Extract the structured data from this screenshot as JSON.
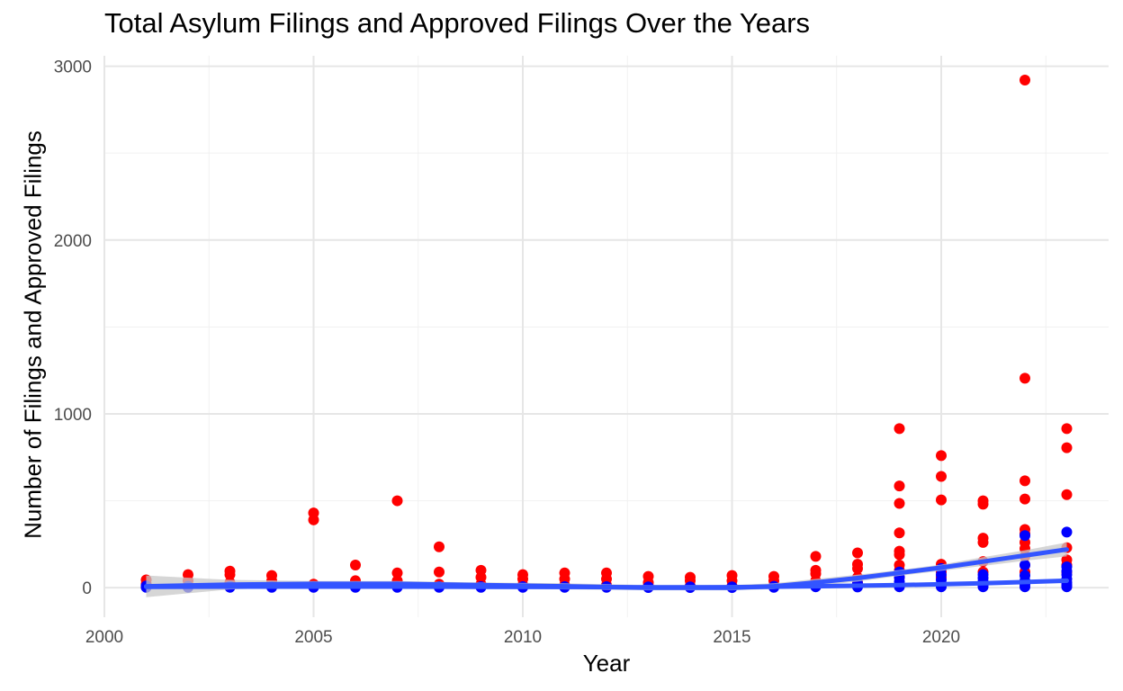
{
  "chart_data": {
    "type": "scatter",
    "title": "Total Asylum Filings and Approved Filings Over the Years",
    "xlabel": "Year",
    "ylabel": "Number of Filings and Approved Filings",
    "xlim": [
      2000,
      2024
    ],
    "ylim": [
      -170,
      3060
    ],
    "x_ticks": [
      2000,
      2005,
      2010,
      2015,
      2020
    ],
    "y_ticks": [
      0,
      1000,
      2000,
      3000
    ],
    "grid": true,
    "legend": "none",
    "colors": {
      "total_points": "#ff0000",
      "approved_points": "#0000ff",
      "trend_line": "#3355ff",
      "confidence_band": "#c8c8c8",
      "grid_major": "#e6e6e6",
      "grid_minor": "#f1f1f1",
      "tick_label": "#4d4d4d"
    },
    "series": [
      {
        "role": "total-filings",
        "color": "#ff0000",
        "points": [
          [
            2001,
            45
          ],
          [
            2001,
            20
          ],
          [
            2001,
            5
          ],
          [
            2002,
            75
          ],
          [
            2002,
            40
          ],
          [
            2002,
            10
          ],
          [
            2003,
            95
          ],
          [
            2003,
            75
          ],
          [
            2003,
            30
          ],
          [
            2004,
            70
          ],
          [
            2004,
            40
          ],
          [
            2004,
            10
          ],
          [
            2005,
            430
          ],
          [
            2005,
            390
          ],
          [
            2005,
            20
          ],
          [
            2006,
            130
          ],
          [
            2006,
            40
          ],
          [
            2006,
            10
          ],
          [
            2007,
            500
          ],
          [
            2007,
            85
          ],
          [
            2007,
            40
          ],
          [
            2007,
            15
          ],
          [
            2008,
            235
          ],
          [
            2008,
            90
          ],
          [
            2008,
            20
          ],
          [
            2009,
            100
          ],
          [
            2009,
            60
          ],
          [
            2009,
            20
          ],
          [
            2010,
            75
          ],
          [
            2010,
            50
          ],
          [
            2010,
            15
          ],
          [
            2011,
            85
          ],
          [
            2011,
            50
          ],
          [
            2011,
            15
          ],
          [
            2012,
            85
          ],
          [
            2012,
            50
          ],
          [
            2012,
            15
          ],
          [
            2013,
            65
          ],
          [
            2013,
            30
          ],
          [
            2013,
            10
          ],
          [
            2014,
            60
          ],
          [
            2014,
            40
          ],
          [
            2014,
            10
          ],
          [
            2015,
            70
          ],
          [
            2015,
            40
          ],
          [
            2015,
            10
          ],
          [
            2016,
            65
          ],
          [
            2016,
            40
          ],
          [
            2016,
            10
          ],
          [
            2017,
            180
          ],
          [
            2017,
            100
          ],
          [
            2017,
            80
          ],
          [
            2017,
            40
          ],
          [
            2018,
            200
          ],
          [
            2018,
            135
          ],
          [
            2018,
            110
          ],
          [
            2018,
            60
          ],
          [
            2018,
            30
          ],
          [
            2019,
            915
          ],
          [
            2019,
            585
          ],
          [
            2019,
            485
          ],
          [
            2019,
            315
          ],
          [
            2019,
            210
          ],
          [
            2019,
            190
          ],
          [
            2019,
            130
          ],
          [
            2019,
            100
          ],
          [
            2019,
            60
          ],
          [
            2020,
            760
          ],
          [
            2020,
            640
          ],
          [
            2020,
            505
          ],
          [
            2020,
            135
          ],
          [
            2020,
            90
          ],
          [
            2020,
            60
          ],
          [
            2021,
            500
          ],
          [
            2021,
            480
          ],
          [
            2021,
            285
          ],
          [
            2021,
            260
          ],
          [
            2021,
            150
          ],
          [
            2021,
            90
          ],
          [
            2022,
            2920
          ],
          [
            2022,
            1205
          ],
          [
            2022,
            615
          ],
          [
            2022,
            510
          ],
          [
            2022,
            335
          ],
          [
            2022,
            310
          ],
          [
            2022,
            260
          ],
          [
            2022,
            225
          ],
          [
            2022,
            180
          ],
          [
            2022,
            130
          ],
          [
            2022,
            90
          ],
          [
            2023,
            915
          ],
          [
            2023,
            805
          ],
          [
            2023,
            535
          ],
          [
            2023,
            230
          ],
          [
            2023,
            160
          ],
          [
            2023,
            130
          ],
          [
            2023,
            90
          ]
        ]
      },
      {
        "role": "approved-filings",
        "color": "#0000ff",
        "points": [
          [
            2001,
            10
          ],
          [
            2001,
            2
          ],
          [
            2002,
            8
          ],
          [
            2002,
            2
          ],
          [
            2003,
            8
          ],
          [
            2003,
            2
          ],
          [
            2004,
            6
          ],
          [
            2004,
            2
          ],
          [
            2005,
            6
          ],
          [
            2005,
            2
          ],
          [
            2006,
            6
          ],
          [
            2006,
            2
          ],
          [
            2007,
            6
          ],
          [
            2007,
            2
          ],
          [
            2008,
            6
          ],
          [
            2008,
            2
          ],
          [
            2009,
            6
          ],
          [
            2009,
            2
          ],
          [
            2010,
            6
          ],
          [
            2010,
            2
          ],
          [
            2011,
            6
          ],
          [
            2011,
            2
          ],
          [
            2012,
            6
          ],
          [
            2012,
            2
          ],
          [
            2013,
            5
          ],
          [
            2013,
            1
          ],
          [
            2014,
            5
          ],
          [
            2014,
            1
          ],
          [
            2015,
            5
          ],
          [
            2015,
            1
          ],
          [
            2016,
            8
          ],
          [
            2016,
            2
          ],
          [
            2017,
            15
          ],
          [
            2017,
            5
          ],
          [
            2018,
            25
          ],
          [
            2018,
            12
          ],
          [
            2018,
            4
          ],
          [
            2019,
            90
          ],
          [
            2019,
            60
          ],
          [
            2019,
            35
          ],
          [
            2019,
            15
          ],
          [
            2019,
            5
          ],
          [
            2020,
            110
          ],
          [
            2020,
            75
          ],
          [
            2020,
            45
          ],
          [
            2020,
            20
          ],
          [
            2020,
            5
          ],
          [
            2021,
            75
          ],
          [
            2021,
            55
          ],
          [
            2021,
            35
          ],
          [
            2021,
            15
          ],
          [
            2021,
            5
          ],
          [
            2022,
            300
          ],
          [
            2022,
            130
          ],
          [
            2022,
            70
          ],
          [
            2022,
            40
          ],
          [
            2022,
            20
          ],
          [
            2022,
            5
          ],
          [
            2023,
            320
          ],
          [
            2023,
            120
          ],
          [
            2023,
            95
          ],
          [
            2023,
            75
          ],
          [
            2023,
            50
          ],
          [
            2023,
            30
          ],
          [
            2023,
            15
          ],
          [
            2023,
            5
          ]
        ]
      }
    ],
    "trend_lines": [
      {
        "role": "total-filings-smooth",
        "color": "#3355ff",
        "x": [
          2001,
          2003,
          2005,
          2007,
          2009,
          2011,
          2013,
          2015,
          2016,
          2017,
          2018,
          2019,
          2020,
          2021,
          2022,
          2023
        ],
        "y": [
          8,
          18,
          22,
          22,
          15,
          8,
          0,
          0,
          8,
          30,
          55,
          85,
          115,
          150,
          185,
          220
        ],
        "band_lower": [
          -55,
          -10,
          5,
          5,
          0,
          -10,
          -15,
          -15,
          -8,
          10,
          35,
          68,
          97,
          125,
          155,
          180
        ],
        "band_upper": [
          70,
          45,
          38,
          38,
          30,
          25,
          15,
          15,
          25,
          50,
          75,
          102,
          133,
          175,
          215,
          260
        ]
      },
      {
        "role": "approved-filings-smooth",
        "color": "#3355ff",
        "x": [
          2001,
          2003,
          2005,
          2007,
          2009,
          2011,
          2013,
          2015,
          2017,
          2019,
          2021,
          2023
        ],
        "y": [
          5,
          6,
          6,
          6,
          5,
          4,
          2,
          3,
          8,
          15,
          25,
          40
        ],
        "band_lower": [
          0,
          2,
          3,
          3,
          2,
          1,
          -1,
          0,
          4,
          10,
          18,
          28
        ],
        "band_upper": [
          10,
          10,
          9,
          9,
          8,
          7,
          5,
          6,
          12,
          20,
          32,
          52
        ]
      }
    ]
  }
}
